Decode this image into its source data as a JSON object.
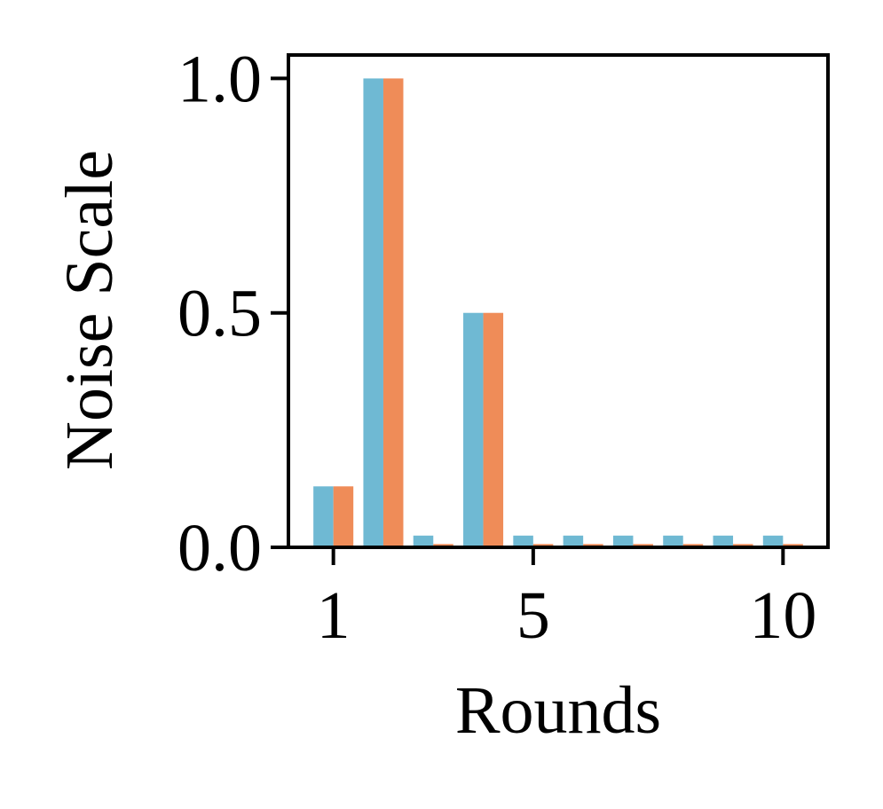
{
  "chart_data": {
    "type": "bar",
    "title": "",
    "xlabel": "Rounds",
    "ylabel": "Noise Scale",
    "x": [
      1,
      2,
      3,
      4,
      5,
      6,
      7,
      8,
      9,
      10
    ],
    "xticks": [
      1,
      5,
      10
    ],
    "xtick_labels": [
      "1",
      "5",
      "10"
    ],
    "yticks": [
      0.0,
      0.5,
      1.0
    ],
    "ytick_labels": [
      "0.0",
      "0.5",
      "1.0"
    ],
    "ylim": [
      0,
      1.05
    ],
    "xlim": [
      0.1,
      10.9
    ],
    "grid": false,
    "legend": null,
    "series": [
      {
        "color": "#6fb9d3",
        "values": [
          0.13,
          1.0,
          0.025,
          0.5,
          0.025,
          0.025,
          0.025,
          0.025,
          0.025,
          0.025
        ]
      },
      {
        "color": "#ef8c58",
        "values": [
          0.13,
          1.0,
          0.007,
          0.5,
          0.007,
          0.007,
          0.007,
          0.007,
          0.007,
          0.007
        ]
      }
    ]
  }
}
